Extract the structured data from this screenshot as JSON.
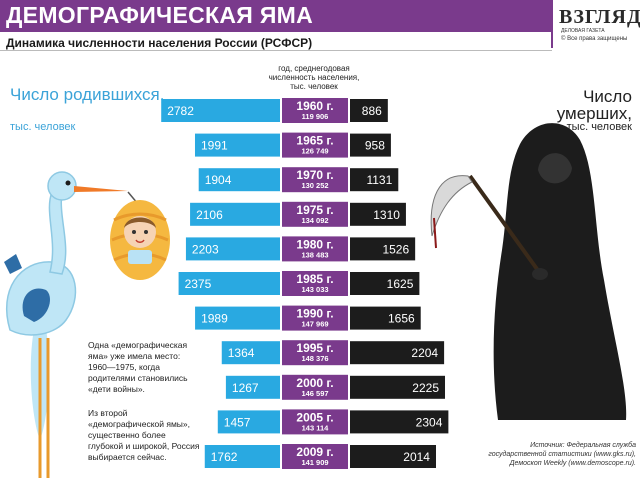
{
  "header": {
    "title": "ДЕМОГРАФИЧЕСКАЯ ЯМА",
    "subtitle": "Динамика численности населения России (РСФСР)",
    "logo_name": "ВЗГЛЯД",
    "logo_sub": "ДЕЛОВАЯ ГАЗЕТА",
    "logo_rights": "© Все права защищены"
  },
  "labels": {
    "axis_caption": "год, среднегодовая численность населения, тыс. человек",
    "births_label": "Число родившихся,",
    "births_unit": "тыс. человек",
    "deaths_label": "Число умерших,",
    "deaths_unit": "тыс. человек"
  },
  "notes": {
    "note1": "Одна «демографическая яма» уже имела место: 1960—1975, когда родителями становились «дети войны».",
    "note2": "Из второй «демографической ямы», существенно более глубокой и широкой, Россия выбирается сейчас."
  },
  "source": {
    "line1": "Источник: Федеральная служба",
    "line2": "государственной статистики (www.gks.ru),",
    "line3": "Демоскоп Weekly (www.demoscope.ru)."
  },
  "colors": {
    "births": "#29a9e1",
    "deaths": "#1c1c1c",
    "year_box": "#7a3a8c",
    "header": "#7a3a8c"
  },
  "chart_data": {
    "type": "bar",
    "categories": [
      "1960 г.",
      "1965 г.",
      "1970 г.",
      "1975 г.",
      "1980 г.",
      "1985 г.",
      "1990 г.",
      "1995 г.",
      "2000 г.",
      "2005 г.",
      "2009 г."
    ],
    "population": [
      "119 906",
      "126 749",
      "130 252",
      "134 092",
      "138 483",
      "143 033",
      "147 969",
      "148 376",
      "146 597",
      "143 114",
      "141 909"
    ],
    "series": [
      {
        "name": "Число родившихся",
        "values": [
          2782,
          1991,
          1904,
          2106,
          2203,
          2375,
          1989,
          1364,
          1267,
          1457,
          1762
        ]
      },
      {
        "name": "Число умерших",
        "values": [
          886,
          958,
          1131,
          1310,
          1526,
          1625,
          1656,
          2204,
          2225,
          2304,
          2014
        ]
      }
    ]
  }
}
